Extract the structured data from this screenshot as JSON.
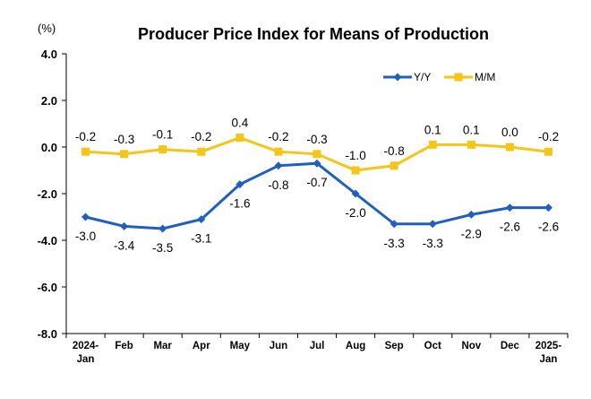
{
  "chart_data": {
    "type": "line",
    "title": "Producer Price Index for Means of Production",
    "ylabel": "(%)",
    "xlabel": "",
    "ylim": [
      -8.0,
      4.0
    ],
    "yticks": [
      "4.0",
      "2.0",
      "0.0",
      "-2.0",
      "-4.0",
      "-6.0",
      "-8.0"
    ],
    "ytick_values": [
      4,
      2,
      0,
      -2,
      -4,
      -6,
      -8
    ],
    "categories": [
      [
        "2024-",
        "Jan"
      ],
      [
        "Feb"
      ],
      [
        "Mar"
      ],
      [
        "Apr"
      ],
      [
        "May"
      ],
      [
        "Jun"
      ],
      [
        "Jul"
      ],
      [
        "Aug"
      ],
      [
        "Sep"
      ],
      [
        "Oct"
      ],
      [
        "Nov"
      ],
      [
        "Dec"
      ],
      [
        "2025-",
        "Jan"
      ]
    ],
    "series": [
      {
        "name": "Y/Y",
        "color": "#1F5FBF",
        "marker": "diamond",
        "values": [
          -3.0,
          -3.4,
          -3.5,
          -3.1,
          -1.6,
          -0.8,
          -0.7,
          -2.0,
          -3.3,
          -3.3,
          -2.9,
          -2.6,
          -2.6
        ],
        "labels": [
          "-3.0",
          "-3.4",
          "-3.5",
          "-3.1",
          "-1.6",
          "-0.8",
          "-0.7",
          "-2.0",
          "-3.3",
          "-3.3",
          "-2.9",
          "-2.6",
          "-2.6"
        ]
      },
      {
        "name": "M/M",
        "color": "#F5C518",
        "marker": "square",
        "values": [
          -0.2,
          -0.3,
          -0.1,
          -0.2,
          0.4,
          -0.2,
          -0.3,
          -1.0,
          -0.8,
          0.1,
          0.1,
          0.0,
          -0.2
        ],
        "labels": [
          "-0.2",
          "-0.3",
          "-0.1",
          "-0.2",
          "0.4",
          "-0.2",
          "-0.3",
          "-1.0",
          "-0.8",
          "0.1",
          "0.1",
          "0.0",
          "-0.2"
        ]
      }
    ],
    "grid": false,
    "legend_position": "top-right"
  }
}
